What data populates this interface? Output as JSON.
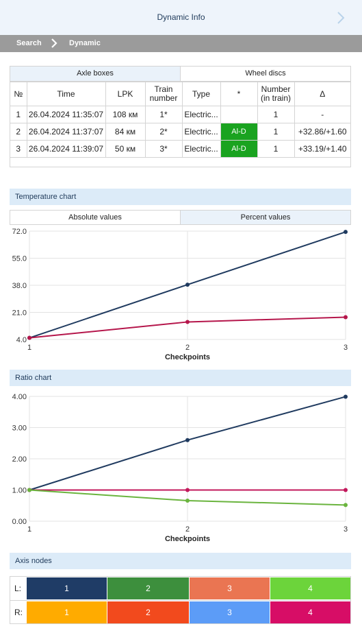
{
  "header": {
    "title": "Dynamic Info"
  },
  "breadcrumb": {
    "items": [
      "Search",
      "Dynamic"
    ]
  },
  "measure_tabs": [
    {
      "label": "Axle boxes",
      "active": true
    },
    {
      "label": "Wheel discs",
      "active": false
    }
  ],
  "table": {
    "headers": [
      "№",
      "Time",
      "LPK",
      "Train number",
      "Type",
      "*",
      "Number (in train)",
      "Δ"
    ],
    "rows": [
      {
        "n": "1",
        "time": "26.04.2024 11:35:07",
        "lpk": "108 км",
        "train": "1*",
        "type": "Electric...",
        "star": "",
        "num": "1",
        "delta": "-"
      },
      {
        "n": "2",
        "time": "26.04.2024 11:37:07",
        "lpk": "84 км",
        "train": "2*",
        "type": "Electric...",
        "star": "Al-D",
        "num": "1",
        "delta": "+32.86/+1.60"
      },
      {
        "n": "3",
        "time": "26.04.2024 11:39:07",
        "lpk": "50 км",
        "train": "3*",
        "type": "Electric...",
        "star": "Al-D",
        "num": "1",
        "delta": "+33.19/+1.40"
      }
    ],
    "alert_color": "#1aa320"
  },
  "sections": {
    "temperature": "Temperature chart",
    "ratio": "Ratio chart",
    "axis_nodes": "Axis nodes"
  },
  "value_tabs": [
    {
      "label": "Absolute values",
      "active": false
    },
    {
      "label": "Percent values",
      "active": true
    }
  ],
  "chart_data": [
    {
      "type": "line",
      "title": "",
      "xlabel": "Checkpoints",
      "ylabel": "",
      "x": [
        1,
        2,
        3
      ],
      "xlim": [
        1,
        3
      ],
      "ylim": [
        4.0,
        72.0
      ],
      "yticks": [
        "4.0",
        "21.0",
        "38.0",
        "55.0",
        "72.0"
      ],
      "grid": true,
      "series": [
        {
          "color": "#1f3a5f",
          "values": [
            5.0,
            38.4,
            71.5
          ]
        },
        {
          "color": "#b5164b",
          "values": [
            5.0,
            15.0,
            18.0
          ]
        }
      ]
    },
    {
      "type": "line",
      "title": "",
      "xlabel": "Checkpoints",
      "ylabel": "",
      "x": [
        1,
        2,
        3
      ],
      "xlim": [
        1,
        3
      ],
      "ylim": [
        0.0,
        4.0
      ],
      "yticks": [
        "0.00",
        "1.00",
        "2.00",
        "3.00",
        "4.00"
      ],
      "grid": true,
      "series": [
        {
          "color": "#1f3a5f",
          "values": [
            1.0,
            2.6,
            3.99
          ]
        },
        {
          "color": "#c2185b",
          "values": [
            1.0,
            1.0,
            1.0
          ]
        },
        {
          "color": "#6ab43e",
          "values": [
            1.0,
            0.66,
            0.52
          ]
        }
      ]
    }
  ],
  "axis_nodes": {
    "rows": [
      {
        "label": "L:",
        "cells": [
          {
            "text": "1",
            "color": "#1f3c66"
          },
          {
            "text": "2",
            "color": "#3d8f3d"
          },
          {
            "text": "3",
            "color": "#ea7552"
          },
          {
            "text": "4",
            "color": "#6cd43b"
          }
        ]
      },
      {
        "label": "R:",
        "cells": [
          {
            "text": "1",
            "color": "#ffab00"
          },
          {
            "text": "2",
            "color": "#f24a1d"
          },
          {
            "text": "3",
            "color": "#5c9cf7"
          },
          {
            "text": "4",
            "color": "#d70d66"
          }
        ]
      }
    ]
  }
}
